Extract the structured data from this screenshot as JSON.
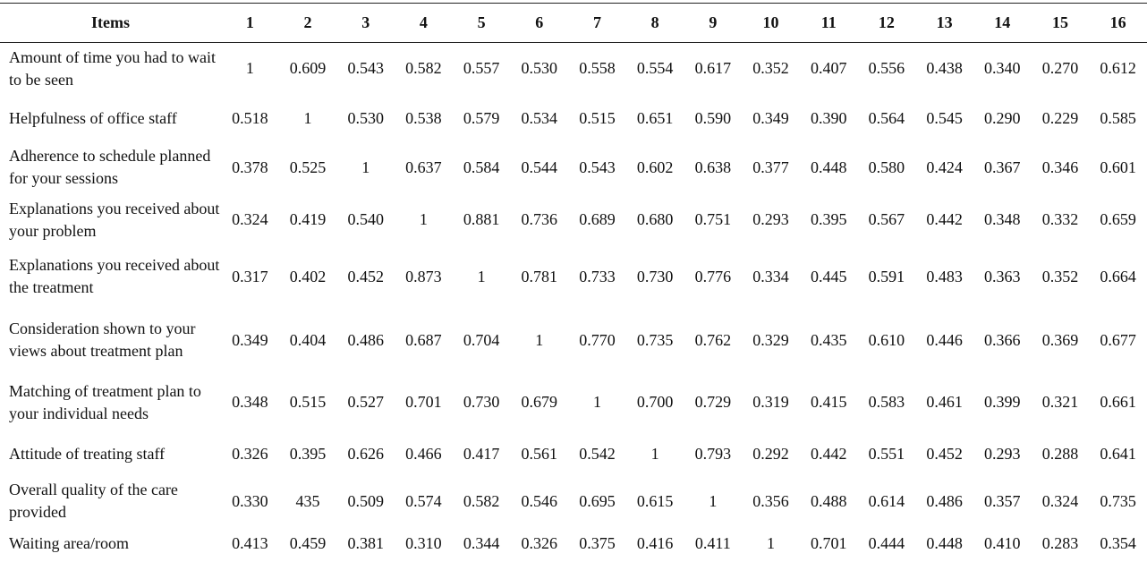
{
  "table": {
    "header": [
      "Items",
      "1",
      "2",
      "3",
      "4",
      "5",
      "6",
      "7",
      "8",
      "9",
      "10",
      "11",
      "12",
      "13",
      "14",
      "15",
      "16"
    ],
    "rows": [
      [
        "Amount of time you had to wait to be seen",
        "1",
        "0.609",
        "0.543",
        "0.582",
        "0.557",
        "0.530",
        "0.558",
        "0.554",
        "0.617",
        "0.352",
        "0.407",
        "0.556",
        "0.438",
        "0.340",
        "0.270",
        "0.612"
      ],
      [
        "Helpfulness of office staff",
        "0.518",
        "1",
        "0.530",
        "0.538",
        "0.579",
        "0.534",
        "0.515",
        "0.651",
        "0.590",
        "0.349",
        "0.390",
        "0.564",
        "0.545",
        "0.290",
        "0.229",
        "0.585"
      ],
      [
        "Adherence to schedule planned for your sessions",
        "0.378",
        "0.525",
        "1",
        "0.637",
        "0.584",
        "0.544",
        "0.543",
        "0.602",
        "0.638",
        "0.377",
        "0.448",
        "0.580",
        "0.424",
        "0.367",
        "0.346",
        "0.601"
      ],
      [
        "Explanations you received about your problem",
        "0.324",
        "0.419",
        "0.540",
        "1",
        "0.881",
        "0.736",
        "0.689",
        "0.680",
        "0.751",
        "0.293",
        "0.395",
        "0.567",
        "0.442",
        "0.348",
        "0.332",
        "0.659"
      ],
      [
        "Explanations you received about the treatment",
        "0.317",
        "0.402",
        "0.452",
        "0.873",
        "1",
        "0.781",
        "0.733",
        "0.730",
        "0.776",
        "0.334",
        "0.445",
        "0.591",
        "0.483",
        "0.363",
        "0.352",
        "0.664"
      ],
      [
        "Consideration shown to your views about treatment plan",
        "0.349",
        "0.404",
        "0.486",
        "0.687",
        "0.704",
        "1",
        "0.770",
        "0.735",
        "0.762",
        "0.329",
        "0.435",
        "0.610",
        "0.446",
        "0.366",
        "0.369",
        "0.677"
      ],
      [
        "Matching of treatment plan to your individual needs",
        "0.348",
        "0.515",
        "0.527",
        "0.701",
        "0.730",
        "0.679",
        "1",
        "0.700",
        "0.729",
        "0.319",
        "0.415",
        "0.583",
        "0.461",
        "0.399",
        "0.321",
        "0.661"
      ],
      [
        "Attitude of treating staff",
        "0.326",
        "0.395",
        "0.626",
        "0.466",
        "0.417",
        "0.561",
        "0.542",
        "1",
        "0.793",
        "0.292",
        "0.442",
        "0.551",
        "0.452",
        "0.293",
        "0.288",
        "0.641"
      ],
      [
        "Overall quality of the care provided",
        "0.330",
        "435",
        "0.509",
        "0.574",
        "0.582",
        "0.546",
        "0.695",
        "0.615",
        "1",
        "0.356",
        "0.488",
        "0.614",
        "0.486",
        "0.357",
        "0.324",
        "0.735"
      ],
      [
        "Waiting area/room",
        "0.413",
        "0.459",
        "0.381",
        "0.310",
        "0.344",
        "0.326",
        "0.375",
        "0.416",
        "0.411",
        "1",
        "0.701",
        "0.444",
        "0.448",
        "0.410",
        "0.283",
        "0.354"
      ]
    ]
  }
}
